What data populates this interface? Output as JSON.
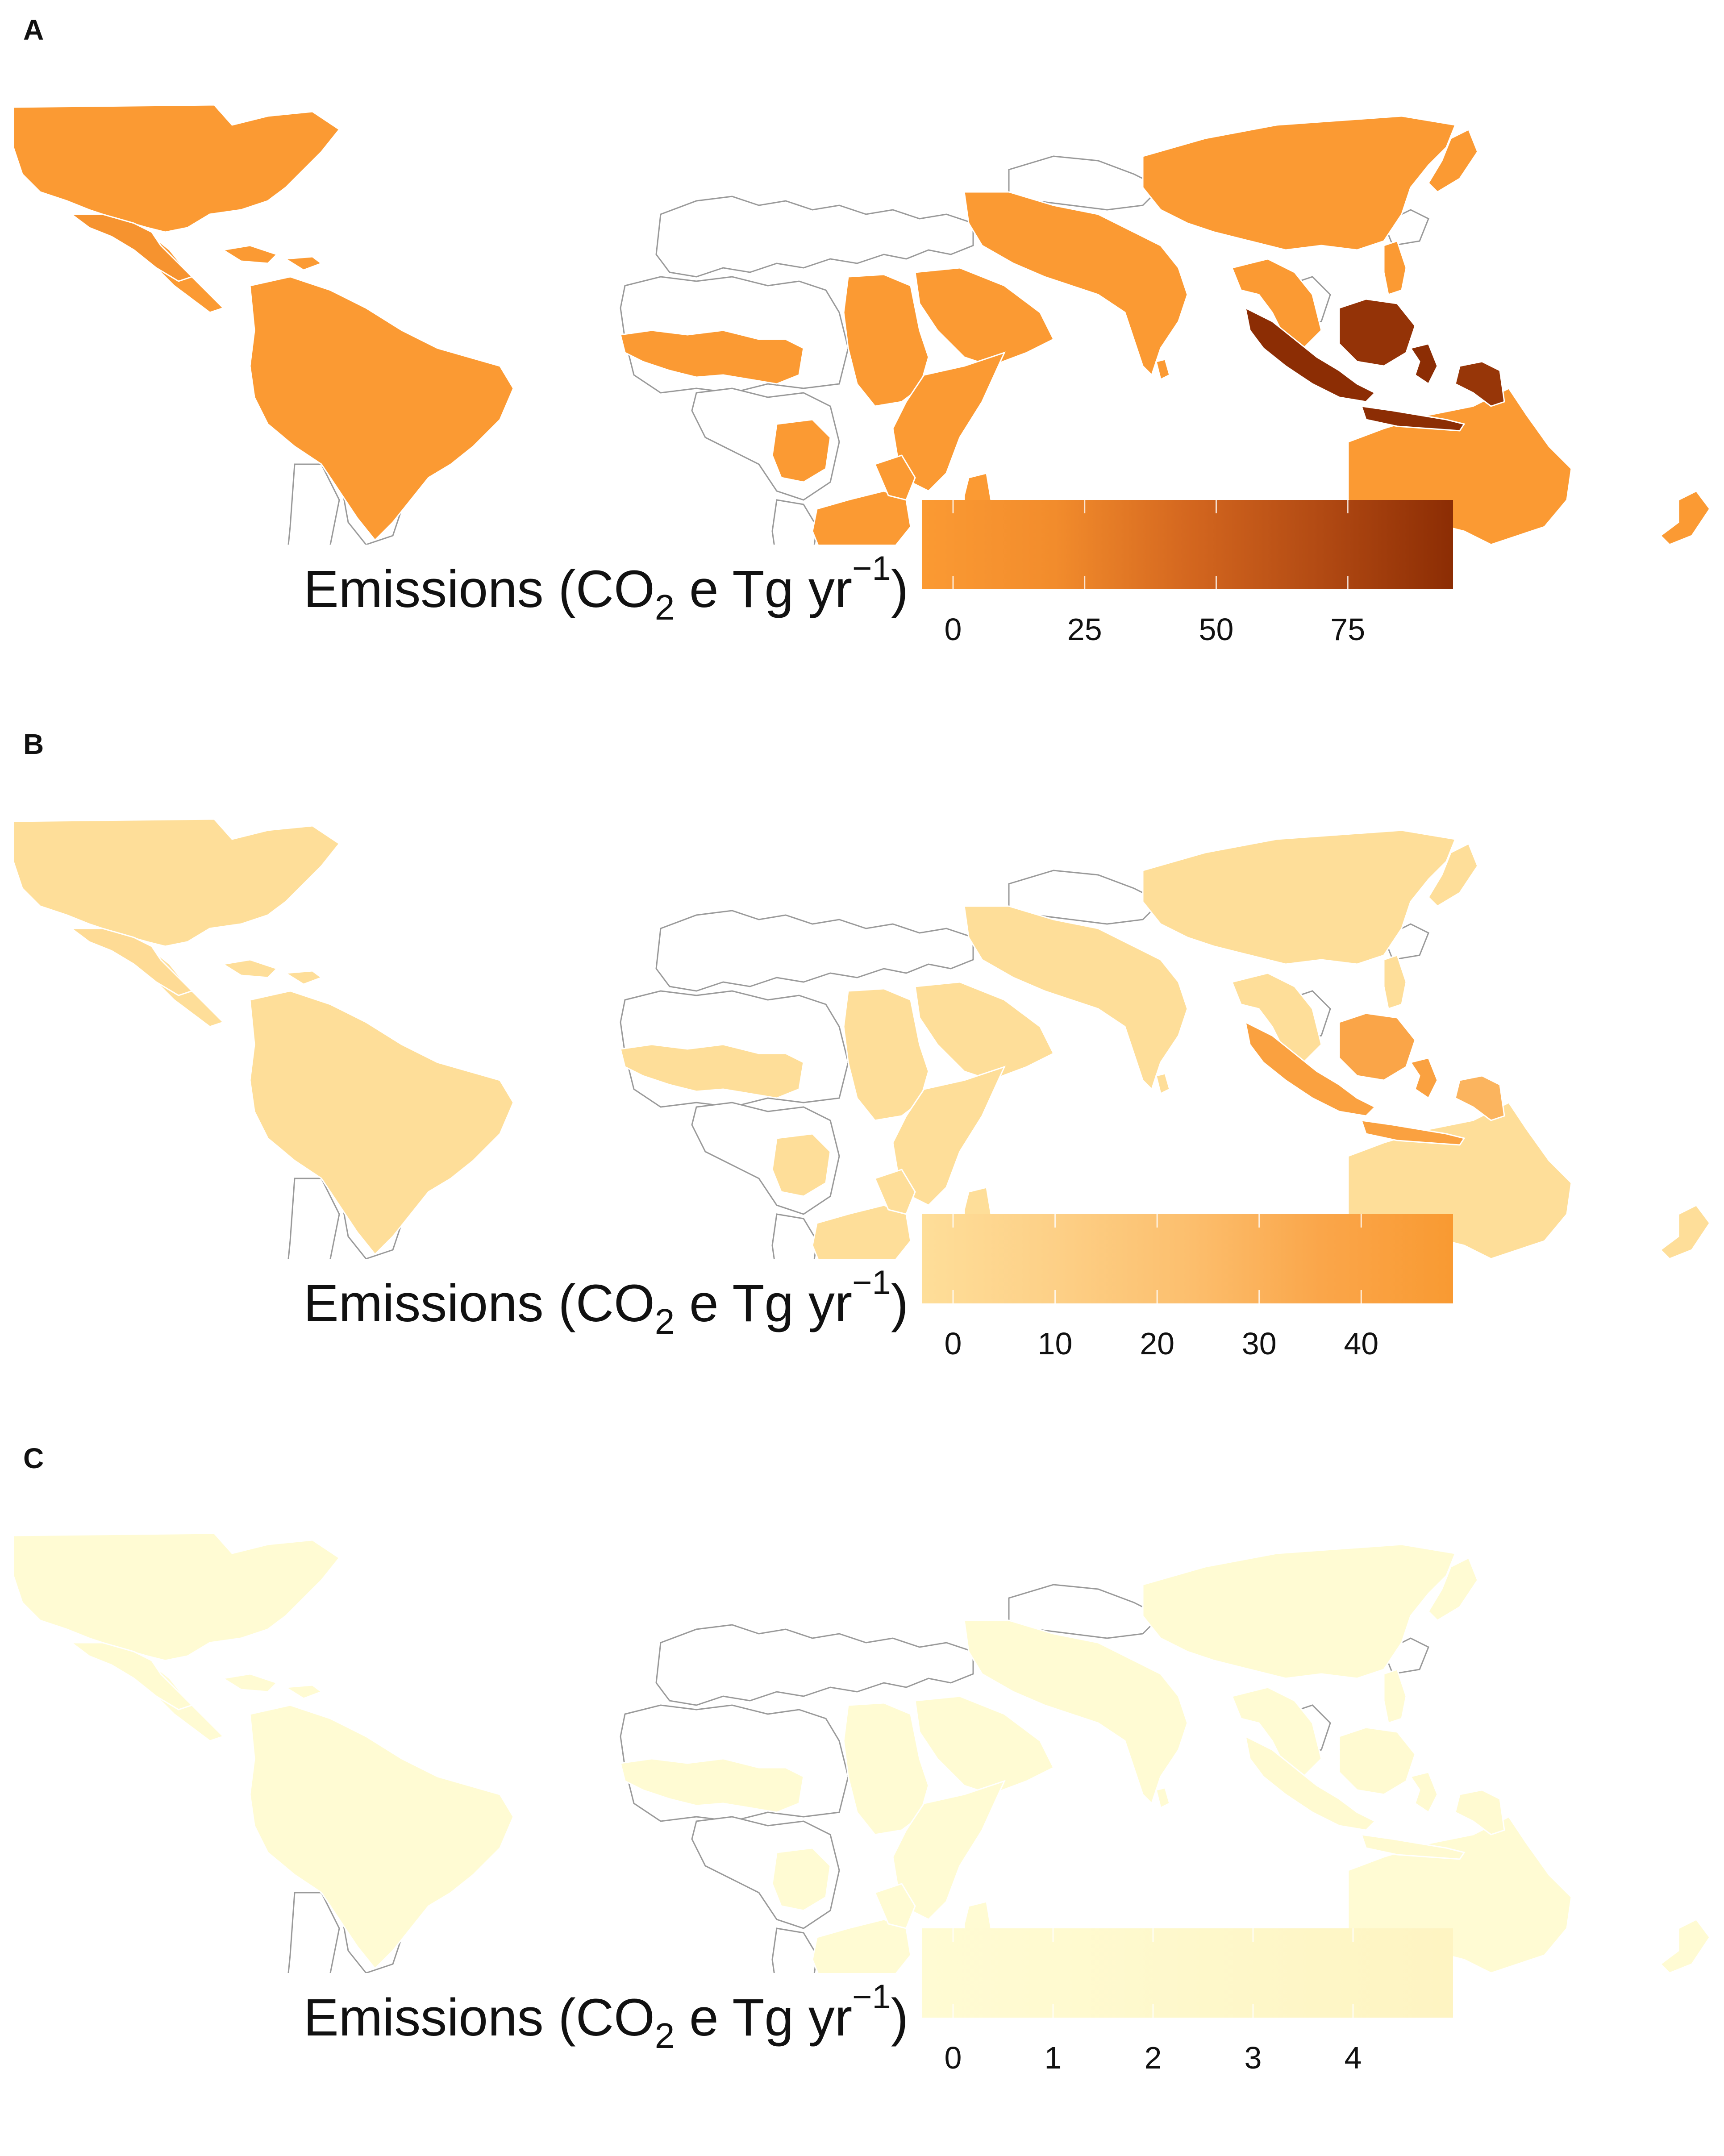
{
  "panels": [
    {
      "letter": "A",
      "legend_title": {
        "main": "Emissions (CO",
        "sub": "2",
        "mid": " e Tg yr",
        "sup": "−1",
        "close": ")"
      },
      "scale": {
        "min": 0,
        "max": 95,
        "colors": [
          "#FB9A33",
          "#F28C2C",
          "#D4671F",
          "#B24A13",
          "#8C2D04"
        ]
      },
      "ticks": [
        "0",
        "25",
        "50",
        "75"
      ],
      "tick_values": [
        0,
        25,
        50,
        75
      ],
      "country_values": {
        "low": 0,
        "mexico": 12,
        "indonesia": 95,
        "borneo": 90,
        "png": 88
      }
    },
    {
      "letter": "B",
      "legend_title": {
        "main": "Emissions (CO",
        "sub": "2",
        "mid": " e Tg yr",
        "sup": "−1",
        "close": ")"
      },
      "scale": {
        "min": 0,
        "max": 49,
        "colors": [
          "#FEDE99",
          "#FDD087",
          "#FCBF6E",
          "#FAA64A",
          "#F99A32"
        ]
      },
      "ticks": [
        "0",
        "10",
        "20",
        "30",
        "40"
      ],
      "tick_values": [
        0,
        10,
        20,
        30,
        40
      ],
      "country_values": {
        "low": 0,
        "mexico": 3,
        "indonesia": 42,
        "borneo": 38,
        "png": 30
      }
    },
    {
      "letter": "C",
      "legend_title": {
        "main": "Emissions (CO",
        "sub": "2",
        "mid": " e Tg yr",
        "sup": "−1",
        "close": ")"
      },
      "scale": {
        "min": 0,
        "max": 5,
        "colors": [
          "#FFFBD3",
          "#FFFAD0",
          "#FEF8CB",
          "#FEF6C6",
          "#FEF4C2"
        ]
      },
      "ticks": [
        "0",
        "1",
        "2",
        "3",
        "4"
      ],
      "tick_values": [
        0,
        1,
        2,
        3,
        4
      ],
      "country_values": {
        "low": 0,
        "mexico": 0.5,
        "indonesia": 1,
        "borneo": 1,
        "png": 1
      }
    }
  ],
  "chart_data": {
    "type": "heatmap",
    "xlabel": "",
    "ylabel": "",
    "legend_placement": "bottom-right"
  }
}
